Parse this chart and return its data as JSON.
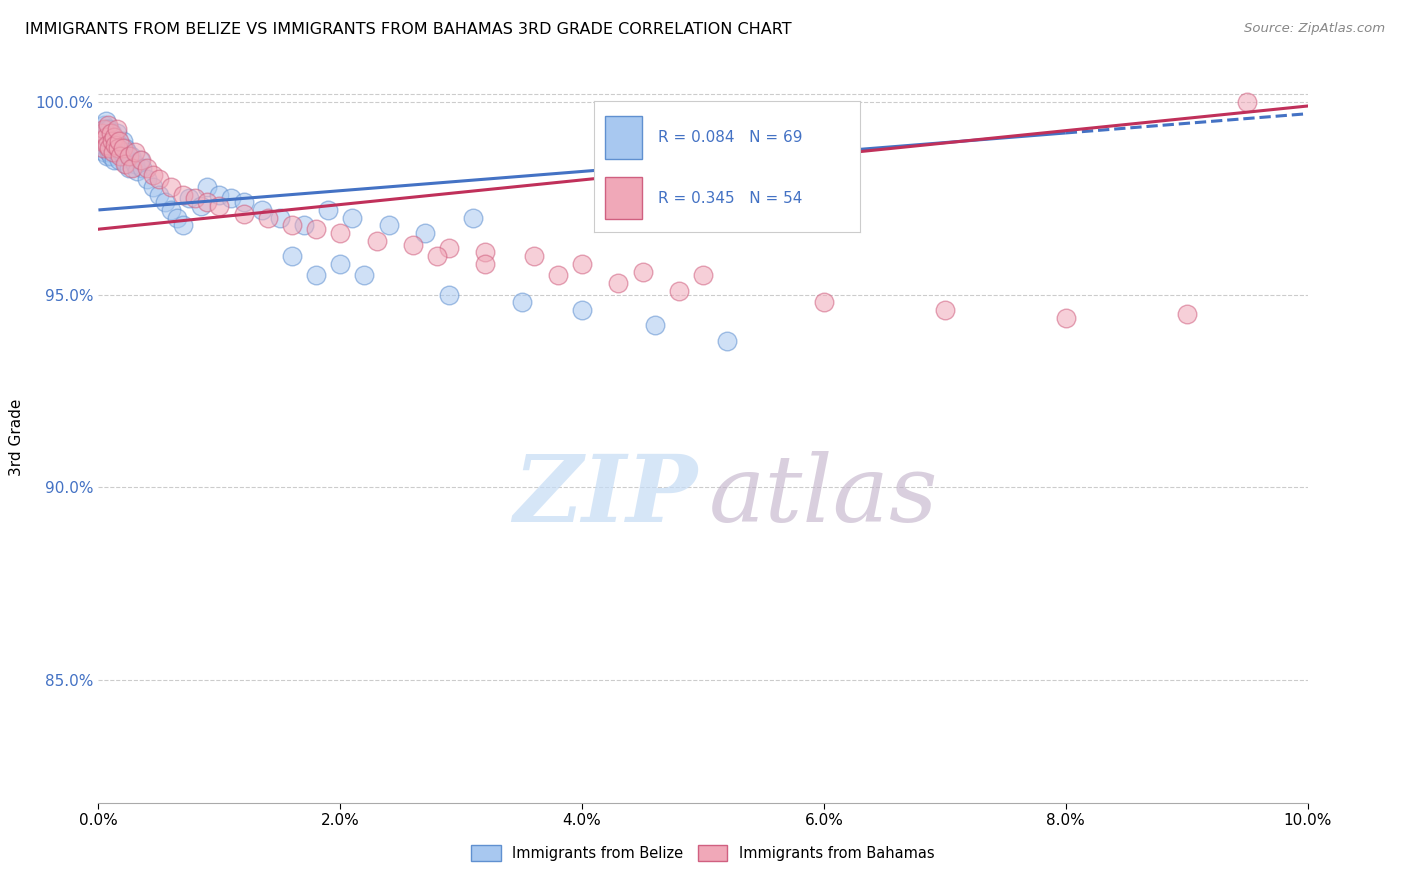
{
  "title": "IMMIGRANTS FROM BELIZE VS IMMIGRANTS FROM BAHAMAS 3RD GRADE CORRELATION CHART",
  "source_text": "Source: ZipAtlas.com",
  "ylabel": "3rd Grade",
  "xlim": [
    0.0,
    0.1
  ],
  "ylim": [
    0.818,
    1.008
  ],
  "xtick_labels": [
    "0.0%",
    "2.0%",
    "4.0%",
    "6.0%",
    "8.0%",
    "10.0%"
  ],
  "xtick_vals": [
    0.0,
    0.02,
    0.04,
    0.06,
    0.08,
    0.1
  ],
  "ytick_labels": [
    "85.0%",
    "90.0%",
    "95.0%",
    "100.0%"
  ],
  "ytick_vals": [
    0.85,
    0.9,
    0.95,
    1.0
  ],
  "belize_color": "#A8C8F0",
  "bahamas_color": "#F0A8B8",
  "belize_edge": "#6090D0",
  "bahamas_edge": "#D06080",
  "trend_belize_color": "#4472C4",
  "trend_bahamas_color": "#C0305A",
  "legend_R_belize": "R = 0.084",
  "legend_N_belize": "N = 69",
  "legend_R_bahamas": "R = 0.345",
  "legend_N_bahamas": "N = 54",
  "belize_x": [
    0.0002,
    0.0003,
    0.0004,
    0.0005,
    0.0005,
    0.0006,
    0.0006,
    0.0007,
    0.0007,
    0.0008,
    0.0008,
    0.0009,
    0.0009,
    0.001,
    0.001,
    0.0011,
    0.0011,
    0.0012,
    0.0012,
    0.0013,
    0.0013,
    0.0014,
    0.0015,
    0.0015,
    0.0016,
    0.0017,
    0.0018,
    0.0019,
    0.002,
    0.0021,
    0.0022,
    0.0023,
    0.0024,
    0.0025,
    0.0027,
    0.003,
    0.0032,
    0.0034,
    0.0036,
    0.004,
    0.0045,
    0.005,
    0.0055,
    0.006,
    0.0065,
    0.007,
    0.0075,
    0.0085,
    0.009,
    0.01,
    0.011,
    0.012,
    0.0135,
    0.015,
    0.017,
    0.019,
    0.021,
    0.024,
    0.027,
    0.031,
    0.016,
    0.018,
    0.02,
    0.022,
    0.029,
    0.035,
    0.04,
    0.046,
    0.052
  ],
  "belize_y": [
    0.99,
    0.988,
    0.992,
    0.987,
    0.994,
    0.989,
    0.995,
    0.986,
    0.993,
    0.991,
    0.988,
    0.987,
    0.993,
    0.99,
    0.986,
    0.988,
    0.992,
    0.987,
    0.99,
    0.988,
    0.985,
    0.99,
    0.987,
    0.992,
    0.988,
    0.985,
    0.989,
    0.987,
    0.99,
    0.986,
    0.988,
    0.984,
    0.987,
    0.983,
    0.986,
    0.984,
    0.982,
    0.985,
    0.983,
    0.98,
    0.978,
    0.976,
    0.974,
    0.972,
    0.97,
    0.968,
    0.975,
    0.973,
    0.978,
    0.976,
    0.975,
    0.974,
    0.972,
    0.97,
    0.968,
    0.972,
    0.97,
    0.968,
    0.966,
    0.97,
    0.96,
    0.955,
    0.958,
    0.955,
    0.95,
    0.948,
    0.946,
    0.942,
    0.938
  ],
  "bahamas_x": [
    0.0002,
    0.0003,
    0.0004,
    0.0005,
    0.0006,
    0.0007,
    0.0008,
    0.0009,
    0.001,
    0.0011,
    0.0012,
    0.0013,
    0.0014,
    0.0015,
    0.0016,
    0.0017,
    0.0018,
    0.002,
    0.0022,
    0.0025,
    0.0028,
    0.003,
    0.0035,
    0.004,
    0.0045,
    0.005,
    0.006,
    0.007,
    0.008,
    0.009,
    0.01,
    0.012,
    0.014,
    0.016,
    0.018,
    0.02,
    0.023,
    0.026,
    0.029,
    0.032,
    0.036,
    0.04,
    0.045,
    0.05,
    0.028,
    0.032,
    0.038,
    0.043,
    0.048,
    0.06,
    0.07,
    0.08,
    0.09,
    0.095
  ],
  "bahamas_y": [
    0.99,
    0.992,
    0.988,
    0.993,
    0.991,
    0.989,
    0.994,
    0.988,
    0.992,
    0.99,
    0.987,
    0.991,
    0.989,
    0.993,
    0.988,
    0.99,
    0.986,
    0.988,
    0.984,
    0.986,
    0.983,
    0.987,
    0.985,
    0.983,
    0.981,
    0.98,
    0.978,
    0.976,
    0.975,
    0.974,
    0.973,
    0.971,
    0.97,
    0.968,
    0.967,
    0.966,
    0.964,
    0.963,
    0.962,
    0.961,
    0.96,
    0.958,
    0.956,
    0.955,
    0.96,
    0.958,
    0.955,
    0.953,
    0.951,
    0.948,
    0.946,
    0.944,
    0.945,
    1.0
  ],
  "watermark_zip_color": "#C5DCF5",
  "watermark_atlas_color": "#C0B0C8",
  "dashed_line_color": "#AAAAAA"
}
